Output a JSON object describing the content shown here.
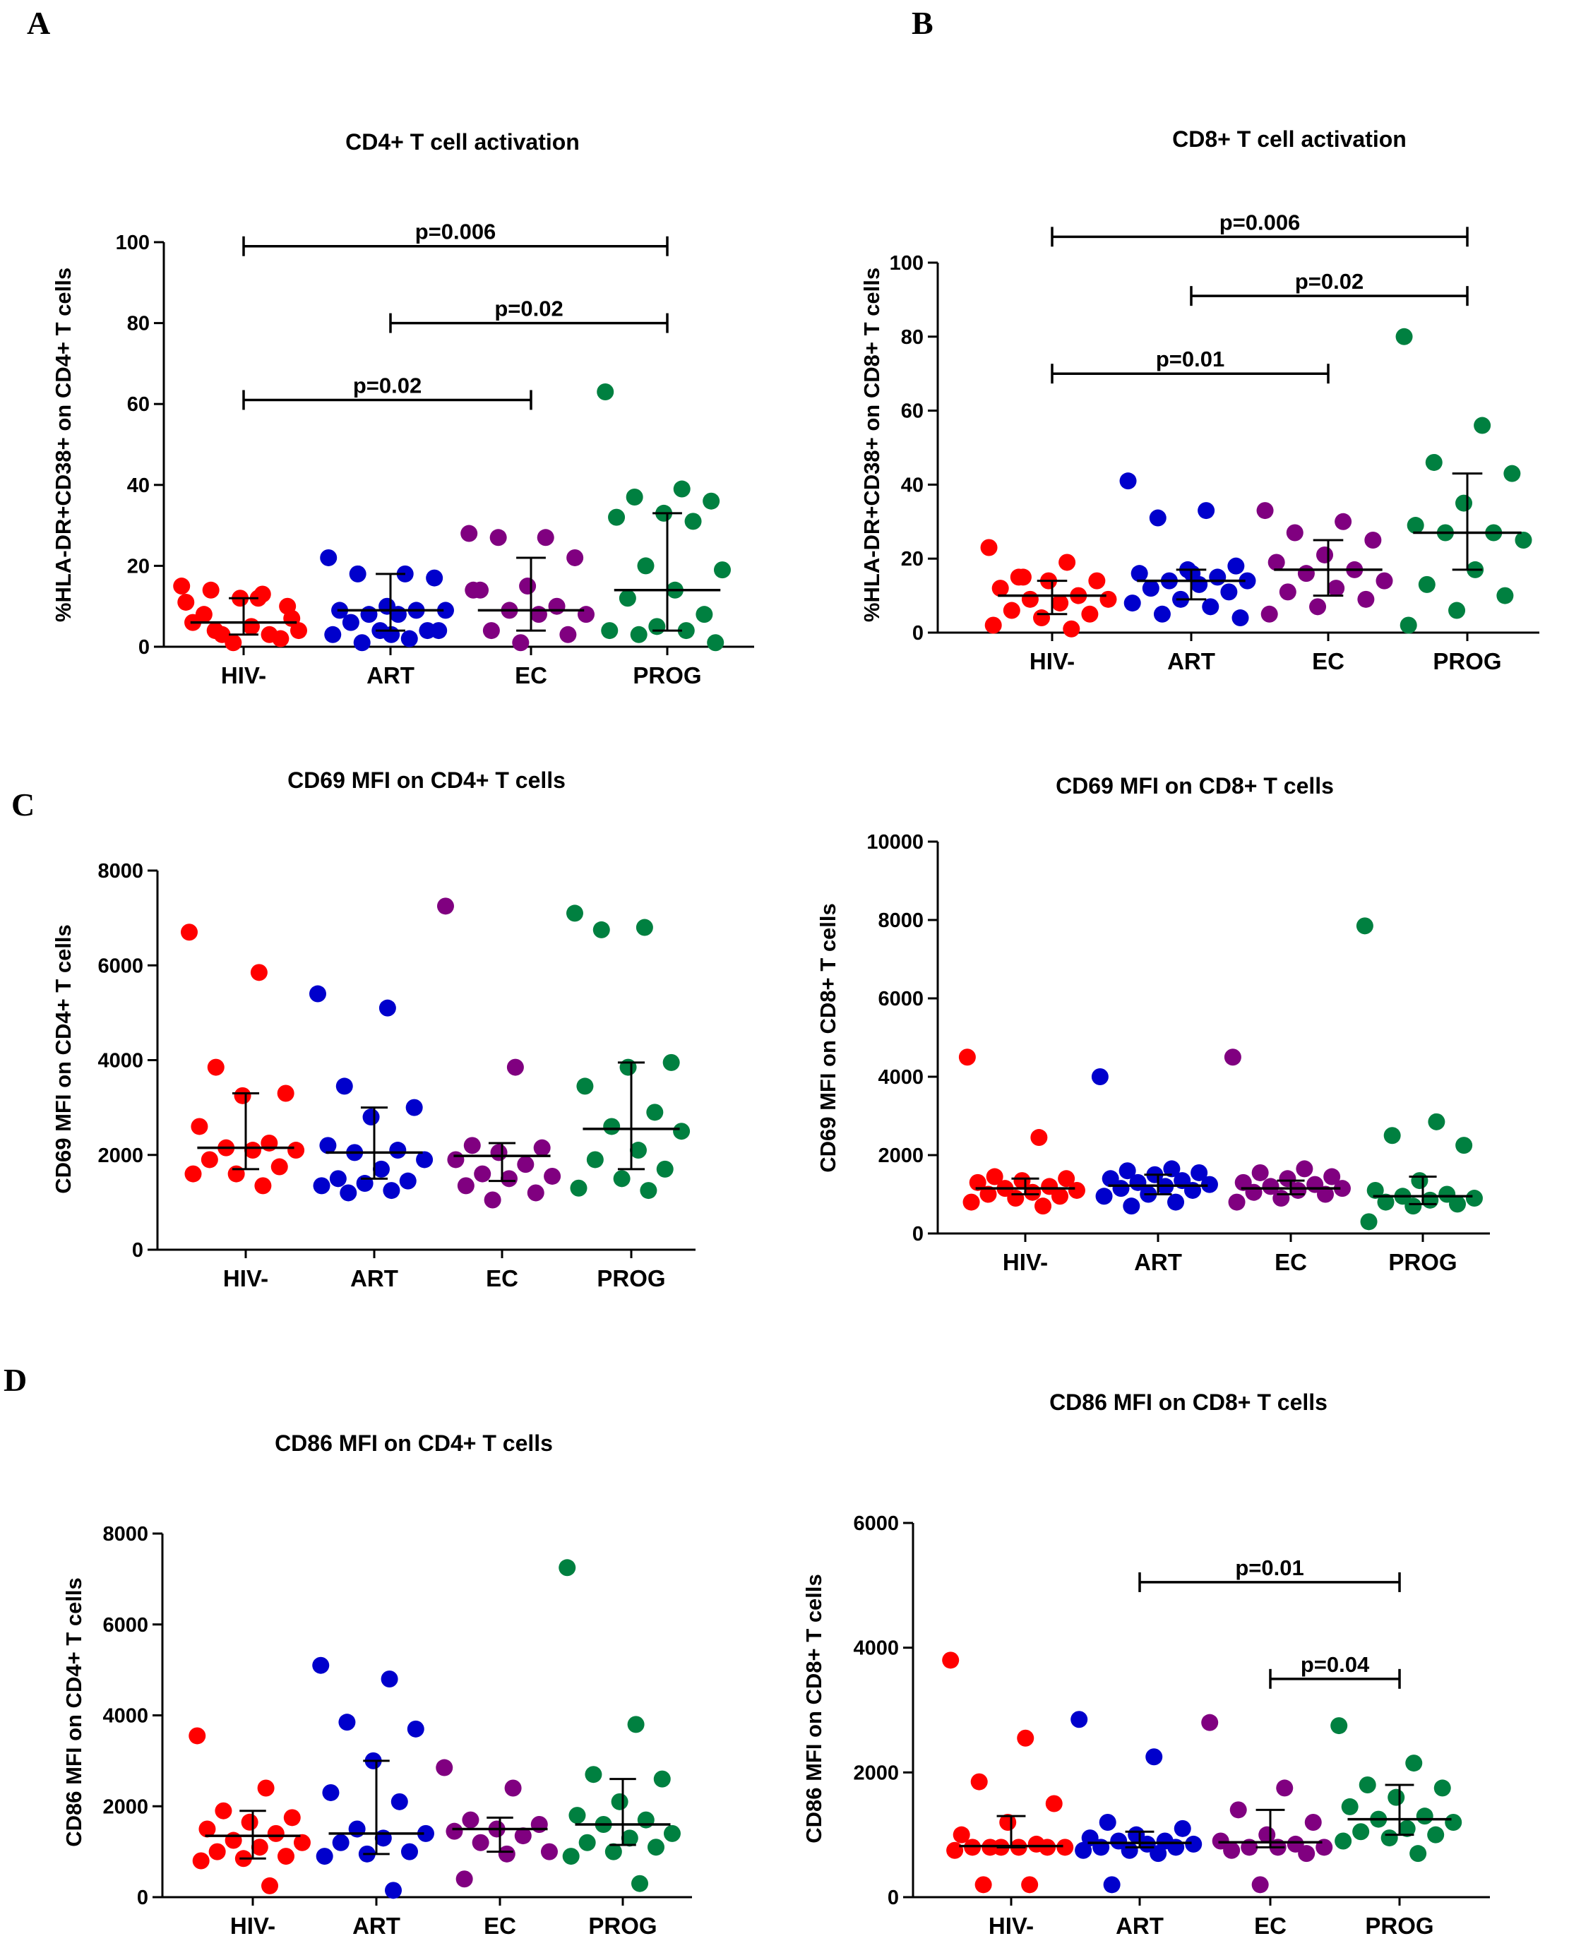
{
  "panel_letters": [
    "A",
    "B",
    "C",
    "D"
  ],
  "group_colors": {
    "HIV-": "#ff0000",
    "ART": "#0000cc",
    "EC": "#800080",
    "PROG": "#008040"
  },
  "chart_data": [
    {
      "id": "A",
      "type": "scatter",
      "title": "CD4+ T cell activation",
      "xlabel": "",
      "ylabel": "%HLA-DR+CD38+ on CD4+ T cells",
      "categories": [
        "HIV-",
        "ART",
        "EC",
        "PROG"
      ],
      "ylim": [
        0,
        100
      ],
      "yticks": [
        0,
        20,
        40,
        60,
        80,
        100
      ],
      "tick_labels": [
        "0",
        "20",
        "40",
        "60",
        "80",
        "100"
      ],
      "points": [
        [
          15,
          12,
          14,
          10,
          12,
          6,
          3,
          3,
          4,
          5,
          8,
          2,
          1,
          11,
          13,
          4,
          7
        ],
        [
          22,
          18,
          18,
          17,
          10,
          9,
          9,
          8,
          9,
          8,
          6,
          4,
          4,
          3,
          2,
          1,
          4,
          3
        ],
        [
          28,
          27,
          27,
          22,
          15,
          14,
          10,
          9,
          8,
          8,
          4,
          3,
          1,
          14
        ],
        [
          63,
          39,
          37,
          36,
          33,
          32,
          31,
          20,
          19,
          14,
          12,
          8,
          5,
          4,
          4,
          3,
          1
        ]
      ],
      "median": [
        6,
        9,
        9,
        14
      ],
      "iqr": [
        [
          3,
          12
        ],
        [
          4,
          18
        ],
        [
          4,
          22
        ],
        [
          4,
          33
        ]
      ],
      "comparisons": [
        {
          "from": "HIV-",
          "to": "PROG",
          "label": "p=0.006",
          "at": 99
        },
        {
          "from": "ART",
          "to": "PROG",
          "label": "p=0.02",
          "at": 80
        },
        {
          "from": "HIV-",
          "to": "EC",
          "label": "p=0.02",
          "at": 61
        }
      ]
    },
    {
      "id": "B",
      "type": "scatter",
      "title": "CD8+ T cell activation",
      "xlabel": "",
      "ylabel": "%HLA-DR+CD38+ on CD8+ T cells",
      "categories": [
        "HIV-",
        "ART",
        "EC",
        "PROG"
      ],
      "ylim": [
        0,
        100
      ],
      "yticks": [
        0,
        20,
        40,
        60,
        80,
        100
      ],
      "tick_labels": [
        "0",
        "20",
        "40",
        "60",
        "80",
        "100"
      ],
      "points": [
        [
          23,
          19,
          15,
          14,
          14,
          12,
          10,
          9,
          9,
          8,
          6,
          5,
          4,
          2,
          1,
          15
        ],
        [
          41,
          33,
          31,
          18,
          17,
          16,
          15,
          14,
          14,
          13,
          12,
          11,
          9,
          8,
          7,
          5,
          4,
          16
        ],
        [
          33,
          30,
          27,
          25,
          21,
          19,
          17,
          16,
          14,
          12,
          11,
          9,
          7,
          5
        ],
        [
          80,
          56,
          46,
          43,
          35,
          29,
          27,
          27,
          25,
          17,
          13,
          10,
          6,
          2
        ]
      ],
      "median": [
        10,
        14,
        17,
        27
      ],
      "iqr": [
        [
          5,
          14
        ],
        [
          9,
          17
        ],
        [
          10,
          25
        ],
        [
          17,
          43
        ]
      ],
      "comparisons": [
        {
          "from": "HIV-",
          "to": "PROG",
          "label": "p=0.006",
          "at": 107
        },
        {
          "from": "ART",
          "to": "PROG",
          "label": "p=0.02",
          "at": 91
        },
        {
          "from": "HIV-",
          "to": "EC",
          "label": "p=0.01",
          "at": 70
        }
      ]
    },
    {
      "id": "C-left",
      "type": "scatter",
      "title": "CD69 MFI on CD4+ T cells",
      "xlabel": "",
      "ylabel": "CD69 MFI on CD4+ T cells",
      "categories": [
        "HIV-",
        "ART",
        "EC",
        "PROG"
      ],
      "ylim": [
        0,
        8000
      ],
      "yticks": [
        0,
        2000,
        4000,
        6000,
        8000
      ],
      "tick_labels": [
        "0",
        "2000",
        "4000",
        "6000",
        "8000"
      ],
      "points": [
        [
          6700,
          5850,
          3850,
          3300,
          3250,
          2600,
          2250,
          2150,
          2100,
          2100,
          1900,
          1750,
          1600,
          1600,
          1350
        ],
        [
          5400,
          5100,
          3450,
          3000,
          2800,
          2200,
          2100,
          2050,
          1900,
          1700,
          1500,
          1450,
          1400,
          1350,
          1250,
          1200
        ],
        [
          7250,
          3850,
          2200,
          2150,
          2050,
          1900,
          1800,
          1600,
          1550,
          1500,
          1350,
          1200,
          1050
        ],
        [
          7100,
          6800,
          6750,
          3950,
          3850,
          3450,
          2900,
          2600,
          2500,
          2100,
          1900,
          1700,
          1500,
          1300,
          1250
        ]
      ],
      "median": [
        2150,
        2050,
        1980,
        2550
      ],
      "iqr": [
        [
          1700,
          3300
        ],
        [
          1500,
          3000
        ],
        [
          1450,
          2250
        ],
        [
          1700,
          3950
        ]
      ],
      "comparisons": []
    },
    {
      "id": "C-right",
      "type": "scatter",
      "title": "CD69 MFI on CD8+ T cells",
      "xlabel": "",
      "ylabel": "CD69 MFI on CD8+ T cells",
      "categories": [
        "HIV-",
        "ART",
        "EC",
        "PROG"
      ],
      "ylim": [
        0,
        10000
      ],
      "yticks": [
        0,
        2000,
        4000,
        6000,
        8000,
        10000
      ],
      "tick_labels": [
        "0",
        "2000",
        "4000",
        "6000",
        "8000",
        "10000"
      ],
      "points": [
        [
          4500,
          2450,
          1450,
          1400,
          1350,
          1300,
          1200,
          1150,
          1100,
          1050,
          1000,
          950,
          900,
          800,
          700
        ],
        [
          4000,
          1650,
          1600,
          1550,
          1500,
          1400,
          1350,
          1300,
          1250,
          1200,
          1150,
          1100,
          1000,
          950,
          800,
          700
        ],
        [
          4500,
          1650,
          1550,
          1450,
          1400,
          1300,
          1250,
          1200,
          1150,
          1100,
          1050,
          1000,
          900,
          800
        ],
        [
          7850,
          2850,
          2500,
          2250,
          1350,
          1100,
          1000,
          950,
          900,
          850,
          800,
          750,
          700,
          300
        ]
      ],
      "median": [
        1150,
        1220,
        1150,
        950
      ],
      "iqr": [
        [
          1000,
          1400
        ],
        [
          1000,
          1500
        ],
        [
          1000,
          1350
        ],
        [
          750,
          1450
        ]
      ],
      "comparisons": []
    },
    {
      "id": "D-left",
      "type": "scatter",
      "title": "CD86 MFI on CD4+ T cells",
      "xlabel": "",
      "ylabel": "CD86 MFI on CD4+ T cells",
      "categories": [
        "HIV-",
        "ART",
        "EC",
        "PROG"
      ],
      "ylim": [
        0,
        8000
      ],
      "yticks": [
        0,
        2000,
        4000,
        6000,
        8000
      ],
      "tick_labels": [
        "0",
        "2000",
        "4000",
        "6000",
        "8000"
      ],
      "points": [
        [
          3550,
          2400,
          1900,
          1750,
          1650,
          1500,
          1400,
          1250,
          1200,
          1100,
          1000,
          900,
          850,
          800,
          250
        ],
        [
          5100,
          4800,
          3850,
          3700,
          3000,
          2300,
          2100,
          1500,
          1400,
          1300,
          1200,
          1000,
          950,
          900,
          150
        ],
        [
          2850,
          2400,
          1700,
          1600,
          1500,
          1450,
          1350,
          1200,
          1000,
          950,
          400
        ],
        [
          7250,
          3800,
          2700,
          2600,
          2100,
          1800,
          1700,
          1600,
          1400,
          1300,
          1200,
          1100,
          1000,
          900,
          300
        ]
      ],
      "median": [
        1350,
        1400,
        1500,
        1600
      ],
      "iqr": [
        [
          850,
          1900
        ],
        [
          950,
          3000
        ],
        [
          1000,
          1750
        ],
        [
          1150,
          2600
        ]
      ],
      "comparisons": []
    },
    {
      "id": "D-right",
      "type": "scatter",
      "title": "CD86 MFI on CD8+ T cells",
      "xlabel": "",
      "ylabel": "CD86 MFI on CD8+ T cells",
      "categories": [
        "HIV-",
        "ART",
        "EC",
        "PROG"
      ],
      "ylim": [
        0,
        6000
      ],
      "yticks": [
        0,
        2000,
        4000,
        6000
      ],
      "tick_labels": [
        "0",
        "2000",
        "4000",
        "6000"
      ],
      "points": [
        [
          3800,
          2550,
          1850,
          1500,
          1200,
          1000,
          850,
          800,
          800,
          800,
          800,
          800,
          800,
          750,
          200,
          200
        ],
        [
          2850,
          2250,
          1200,
          1100,
          1000,
          950,
          900,
          900,
          850,
          850,
          800,
          800,
          750,
          750,
          700,
          200
        ],
        [
          2800,
          1750,
          1400,
          1200,
          1000,
          900,
          850,
          800,
          800,
          800,
          750,
          700,
          200
        ],
        [
          2750,
          2150,
          1800,
          1750,
          1600,
          1450,
          1300,
          1250,
          1200,
          1100,
          1050,
          1000,
          950,
          900,
          700
        ]
      ],
      "median": [
        820,
        870,
        880,
        1250
      ],
      "iqr": [
        [
          800,
          1300
        ],
        [
          800,
          1050
        ],
        [
          800,
          1400
        ],
        [
          1000,
          1800
        ]
      ],
      "comparisons": [
        {
          "from": "ART",
          "to": "PROG",
          "label": "p=0.01",
          "at": 5050
        },
        {
          "from": "EC",
          "to": "PROG",
          "label": "p=0.04",
          "at": 3500
        }
      ]
    }
  ]
}
